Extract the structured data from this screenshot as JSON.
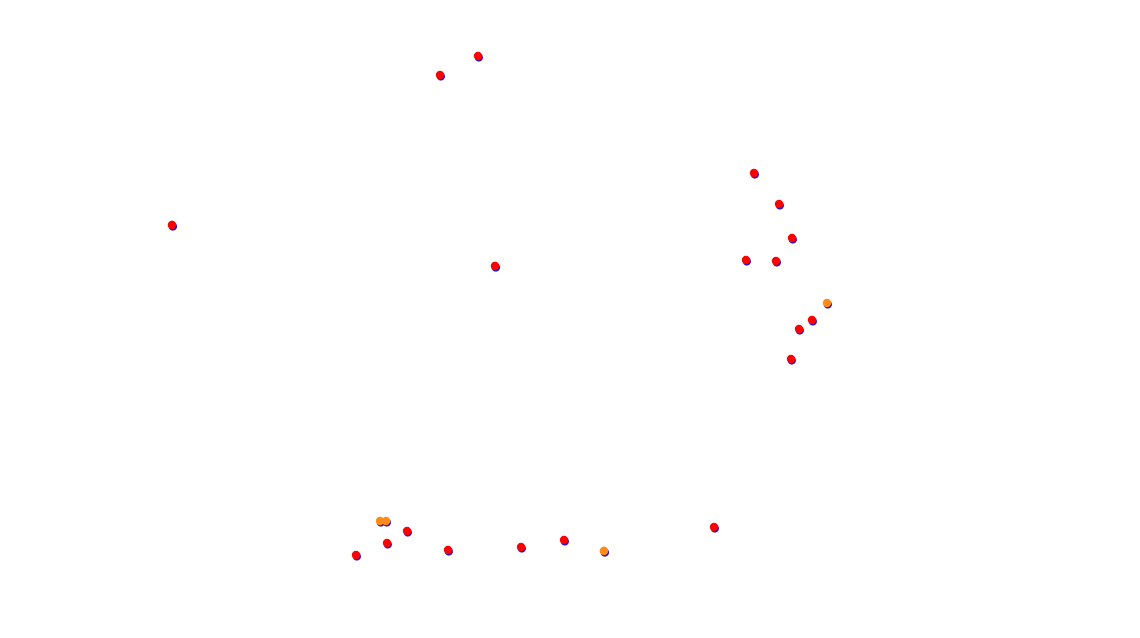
{
  "colors": {
    "background": "#ffffff",
    "blue": "#2a13c8",
    "red": "#ff0000",
    "orange": "#ff8a17"
  },
  "markers": [
    {
      "kind": "red"
    },
    {
      "kind": "red"
    },
    {
      "kind": "red"
    },
    {
      "kind": "red"
    },
    {
      "kind": "red"
    },
    {
      "kind": "red"
    },
    {
      "kind": "red"
    },
    {
      "kind": "red"
    },
    {
      "kind": "red"
    },
    {
      "kind": "red"
    },
    {
      "kind": "orange"
    },
    {
      "kind": "red"
    },
    {
      "kind": "red"
    },
    {
      "kind": "red"
    },
    {
      "kind": "red"
    },
    {
      "kind": "orange"
    },
    {
      "kind": "orange"
    },
    {
      "kind": "red"
    },
    {
      "kind": "red"
    },
    {
      "kind": "red"
    },
    {
      "kind": "red"
    },
    {
      "kind": "red"
    },
    {
      "kind": "red"
    },
    {
      "kind": "orange"
    },
    {
      "kind": "red"
    },
    {
      "kind": "red"
    }
  ]
}
